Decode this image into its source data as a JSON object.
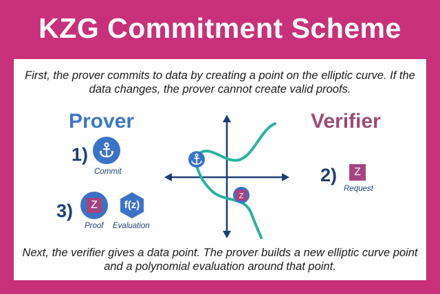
{
  "title": "KZG Commitment Scheme",
  "intro_text": "First, the prover commits to data by creating a point on the elliptic curve. If the data changes, the prover cannot create valid proofs.",
  "outro_text": "Next, the verifier gives a data point. The prover builds a new elliptic curve point and a polynomial evaluation around that point.",
  "prover": {
    "heading": "Prover",
    "step1": {
      "number": "1)",
      "icon": "anchor-icon",
      "caption": "Commit"
    },
    "step3": {
      "number": "3)",
      "proof": {
        "glyph": "Z",
        "caption": "Proof"
      },
      "evaluation": {
        "glyph": "f(z)",
        "caption": "Evaluation"
      }
    }
  },
  "verifier": {
    "heading": "Verifier",
    "step2": {
      "number": "2)",
      "glyph": "Z",
      "caption": "Request"
    }
  },
  "curve": {
    "commit_marker_icon": "anchor-icon",
    "request_marker_glyph": "Z"
  },
  "colors": {
    "background": "#c8317a",
    "prover_blue": "#3a78c9",
    "verifier_magenta": "#9c4a76",
    "curve_teal": "#2ab3a0",
    "axis_navy": "#1d3f73"
  }
}
